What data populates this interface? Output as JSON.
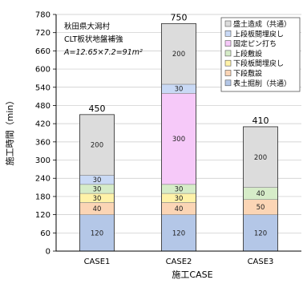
{
  "chart_data": {
    "type": "bar",
    "stacked": true,
    "categories": [
      "CASE1",
      "CASE2",
      "CASE3"
    ],
    "xlabel": "施工CASE",
    "ylabel": "施工時間（min）",
    "ylim": [
      0,
      780
    ],
    "yticks": [
      0,
      60,
      120,
      180,
      240,
      300,
      360,
      420,
      480,
      540,
      600,
      660,
      720,
      780
    ],
    "series": [
      {
        "name": "表土掘削（共通）",
        "color": "#b4c7e7",
        "values": [
          120,
          120,
          120
        ]
      },
      {
        "name": "下段敷設",
        "color": "#fbd5b5",
        "values": [
          40,
          40,
          50
        ]
      },
      {
        "name": "下段板間埋戻し",
        "color": "#fff2a8",
        "values": [
          30,
          30,
          0
        ]
      },
      {
        "name": "上段敷設",
        "color": "#d6ecc8",
        "values": [
          30,
          30,
          40
        ]
      },
      {
        "name": "固定ピン打ち",
        "color": "#f6c9f9",
        "values": [
          0,
          300,
          0
        ]
      },
      {
        "name": "上段板間埋戻し",
        "color": "#c9d9f5",
        "values": [
          30,
          30,
          0
        ]
      },
      {
        "name": "盛土造成（共通）",
        "color": "#dcdcdc",
        "values": [
          200,
          200,
          200
        ]
      }
    ],
    "totals": [
      450,
      750,
      410
    ],
    "legend_position": "top-right",
    "annotations": [
      "秋田県大潟村",
      "CLT板状地盤補強",
      "A=12.65×7.2=91m²"
    ]
  }
}
